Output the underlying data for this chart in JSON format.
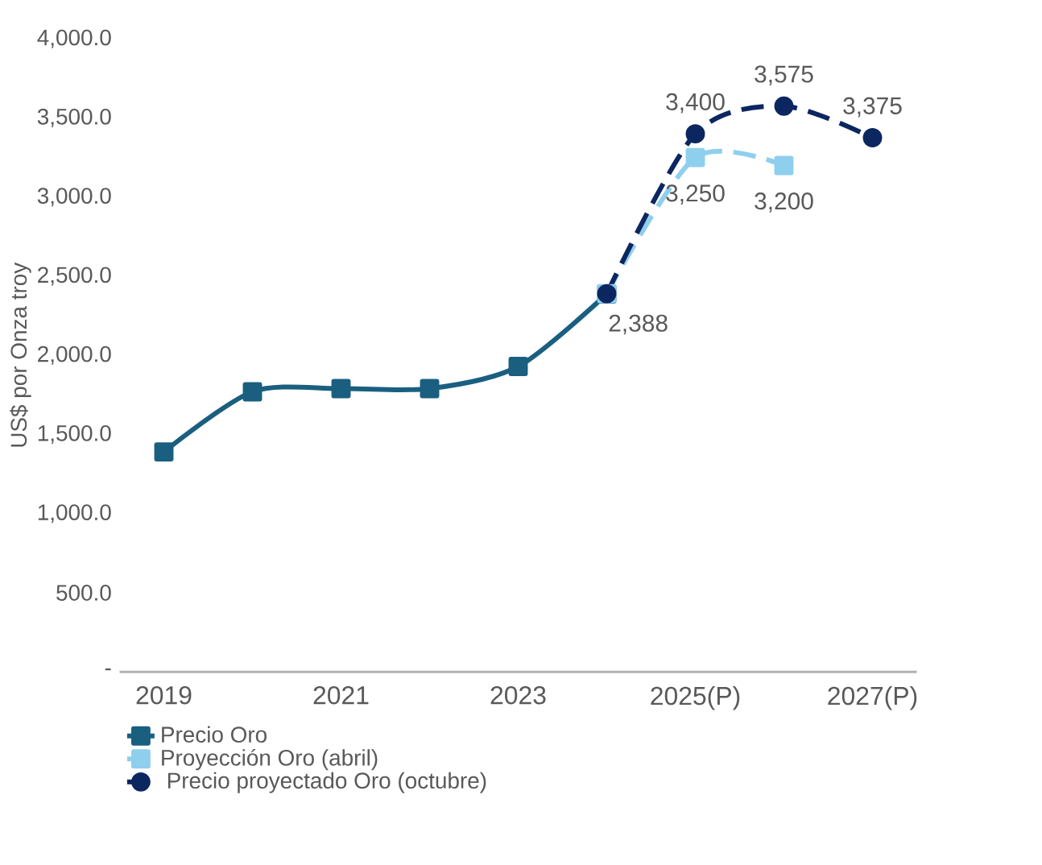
{
  "chart_data": {
    "type": "line",
    "categories": [
      "2019",
      null,
      "2021",
      null,
      "2023",
      null,
      "2025(P)",
      null,
      "2027(P)"
    ],
    "ylabel": "US$ por Onza troy",
    "ylim": [
      0,
      4000
    ],
    "yticks": [
      {
        "value": 0,
        "label": "-"
      },
      {
        "value": 500,
        "label": "500.0"
      },
      {
        "value": 1000,
        "label": "1,000.0"
      },
      {
        "value": 1500,
        "label": "1,500.0"
      },
      {
        "value": 2000,
        "label": "2,000.0"
      },
      {
        "value": 2500,
        "label": "2,500.0"
      },
      {
        "value": 3000,
        "label": "3,000.0"
      },
      {
        "value": 3500,
        "label": "3,500.0"
      },
      {
        "value": 4000,
        "label": "4,000.0"
      }
    ],
    "grid": false,
    "legend": "bottom",
    "series": [
      {
        "name": "Precio Oro",
        "color": "#1a5f80",
        "marker": "square",
        "line_style": "solid",
        "values": [
          1390,
          1770,
          1790,
          1790,
          1930,
          2388,
          null,
          null,
          null
        ],
        "value_labels": [
          null,
          null,
          null,
          null,
          null,
          "2,388",
          null,
          null,
          null
        ]
      },
      {
        "name": "Proyección Oro (abril)",
        "color": "#8ecfee",
        "marker": "square",
        "line_style": "dashed",
        "values": [
          null,
          null,
          null,
          null,
          null,
          2390,
          3250,
          3200,
          null
        ],
        "value_labels": [
          null,
          null,
          null,
          null,
          null,
          null,
          "3,250",
          "3,200",
          null
        ]
      },
      {
        "name": " Precio proyectado Oro (octubre)",
        "color": "#0c2660",
        "marker": "circle",
        "line_style": "dashed",
        "values": [
          null,
          null,
          null,
          null,
          null,
          2390,
          3400,
          3575,
          3375
        ],
        "value_labels": [
          null,
          null,
          null,
          null,
          null,
          null,
          "3,400",
          "3,575",
          "3,375"
        ]
      }
    ]
  }
}
